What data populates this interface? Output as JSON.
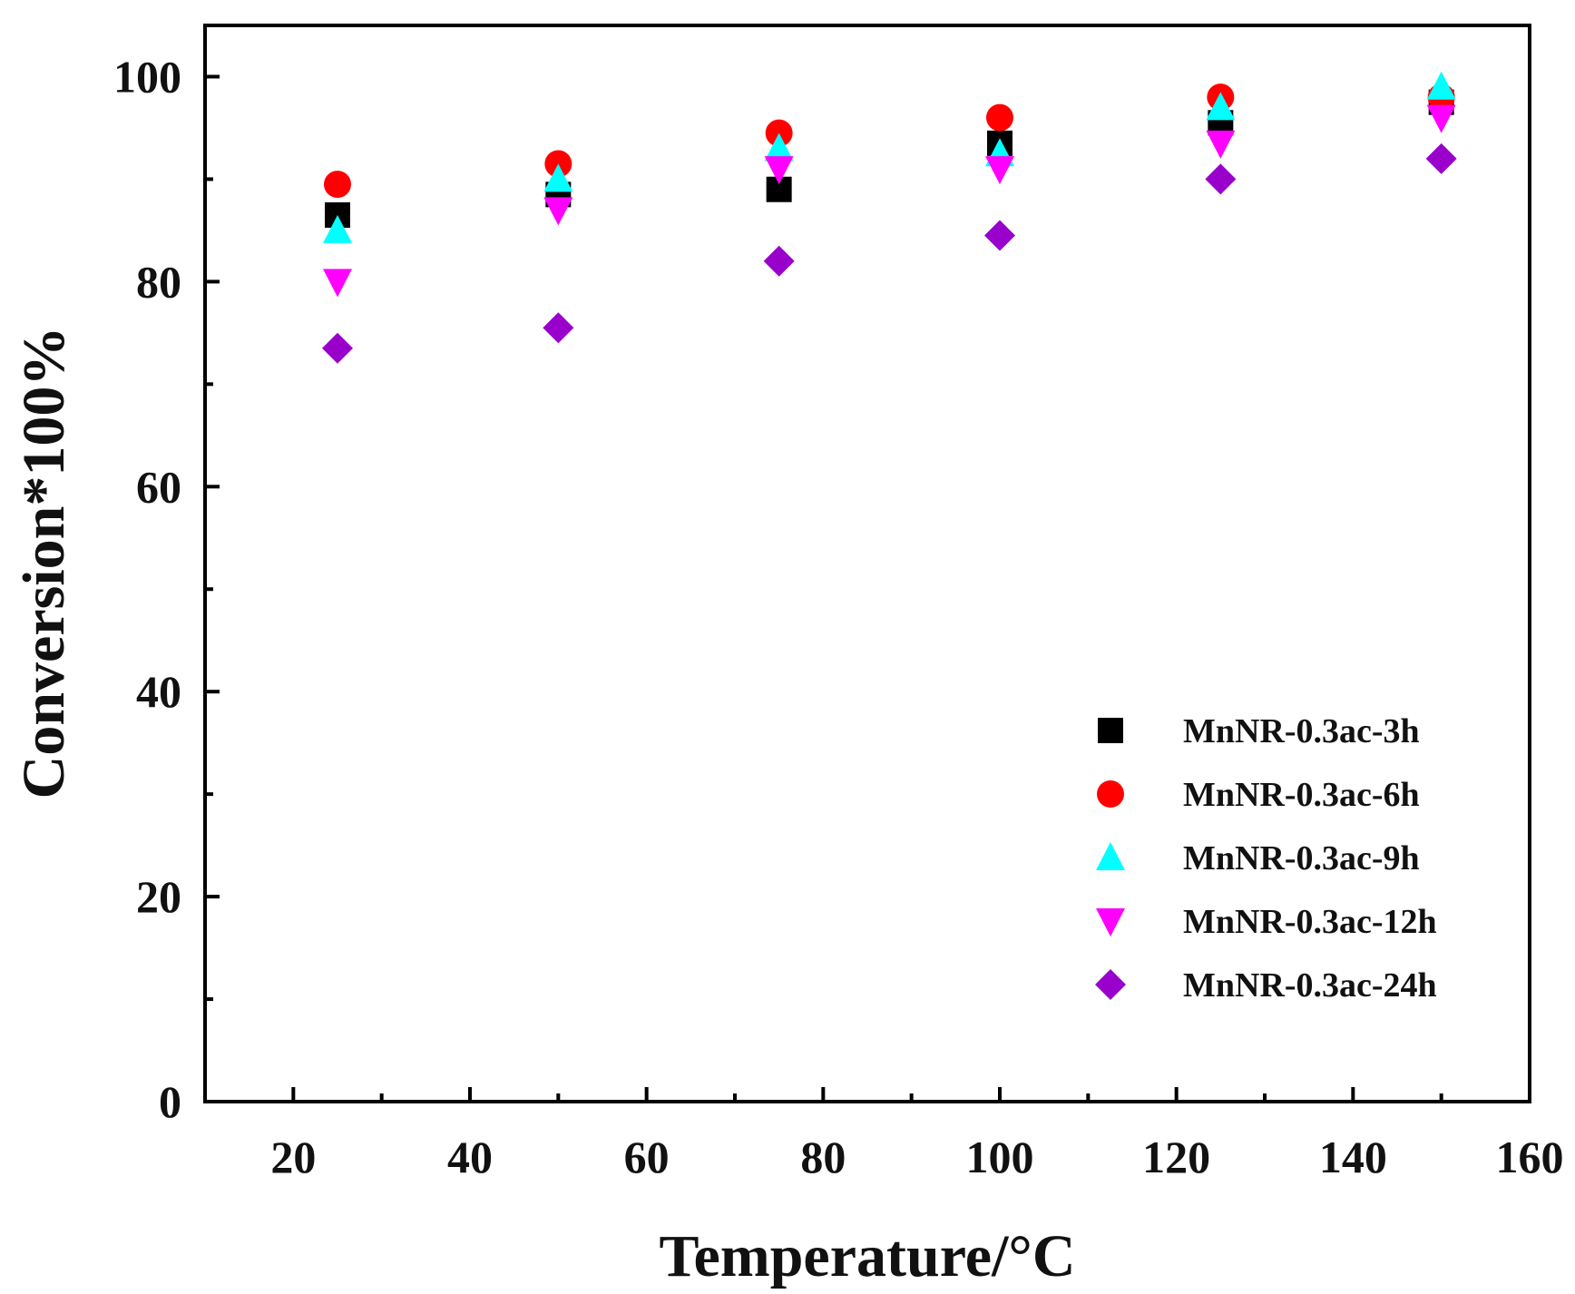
{
  "chart_data": {
    "type": "scatter",
    "title": "",
    "xlabel": "Temperature/°C",
    "ylabel": "Conversion*100%",
    "xlim": [
      10,
      160
    ],
    "ylim": [
      0,
      105
    ],
    "x_ticks": [
      20,
      40,
      60,
      80,
      100,
      120,
      140,
      160
    ],
    "x_tick_labels": [
      "20",
      "40",
      "60",
      "80",
      "100",
      "120",
      "140",
      "160"
    ],
    "y_ticks": [
      0,
      20,
      40,
      60,
      80,
      100
    ],
    "y_tick_labels": [
      "0",
      "20",
      "40",
      "60",
      "80",
      "100"
    ],
    "x_minor_ticks": [
      30,
      50,
      70,
      90,
      110,
      130,
      150
    ],
    "y_minor_ticks": [
      10,
      30,
      50,
      70,
      90
    ],
    "legend_position": "bottom-right",
    "x": [
      25,
      50,
      75,
      100,
      125,
      150
    ],
    "series": [
      {
        "name": "MnNR-0.3ac-3h",
        "marker": "square",
        "color": "#000000",
        "values": [
          86.5,
          88.5,
          89.0,
          93.5,
          95.5,
          97.5
        ]
      },
      {
        "name": "MnNR-0.3ac-6h",
        "marker": "circle",
        "color": "#ff0000",
        "values": [
          89.5,
          91.5,
          94.5,
          96.0,
          98.0,
          98.0
        ]
      },
      {
        "name": "MnNR-0.3ac-9h",
        "marker": "triangle-up",
        "color": "#00ffff",
        "values": [
          85.0,
          90.0,
          93.0,
          92.5,
          97.0,
          99.0
        ]
      },
      {
        "name": "MnNR-0.3ac-12h",
        "marker": "triangle-down",
        "color": "#ff00ff",
        "values": [
          80.0,
          87.0,
          91.0,
          91.0,
          93.5,
          96.0
        ]
      },
      {
        "name": "MnNR-0.3ac-24h",
        "marker": "diamond",
        "color": "#9900cc",
        "values": [
          73.5,
          75.5,
          82.0,
          84.5,
          90.0,
          92.0
        ]
      }
    ]
  }
}
